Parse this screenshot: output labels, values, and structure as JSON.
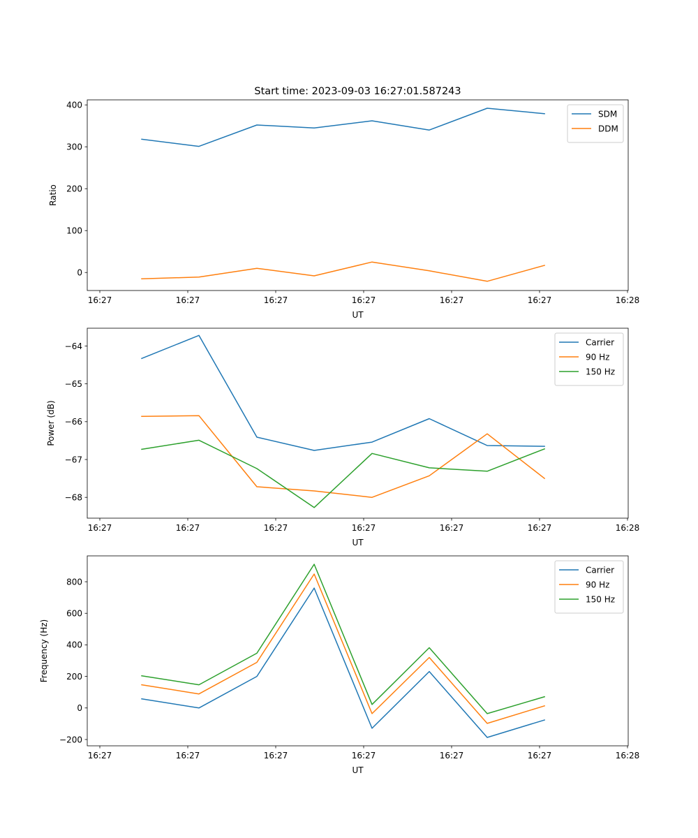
{
  "figure": {
    "title": "Start time: 2023-09-03 16:27:01.587243"
  },
  "chart_data": [
    {
      "type": "line",
      "title": "Start time: 2023-09-03 16:27:01.587243",
      "xlabel": "UT",
      "ylabel": "Ratio",
      "x_unit": "seconds after 16:27:00 UT",
      "x": [
        4.76,
        11.27,
        17.86,
        24.37,
        30.95,
        37.46,
        44.05,
        50.56
      ],
      "xlim": [
        -1.43,
        60.08
      ],
      "xticks": [
        0,
        10,
        20,
        30,
        40,
        50,
        60
      ],
      "xtick_labels": [
        "16:27",
        "16:27",
        "16:27",
        "16:27",
        "16:27",
        "16:27",
        "16:28"
      ],
      "ylim": [
        -43,
        412
      ],
      "yticks": [
        0,
        100,
        200,
        300,
        400
      ],
      "ytick_labels": [
        "0",
        "100",
        "200",
        "300",
        "400"
      ],
      "grid": false,
      "legend_position": "top-right",
      "series": [
        {
          "name": "SDM",
          "color": "#1f77b4",
          "values": [
            318,
            301,
            352,
            345,
            362,
            340,
            392,
            379
          ]
        },
        {
          "name": "DDM",
          "color": "#ff7f0e",
          "values": [
            -15,
            -11,
            10,
            -8,
            25,
            4,
            -21,
            17
          ]
        }
      ]
    },
    {
      "type": "line",
      "title": "",
      "xlabel": "UT",
      "ylabel": "Power (dB)",
      "x_unit": "seconds after 16:27:00 UT",
      "x": [
        4.76,
        11.27,
        17.86,
        24.37,
        30.95,
        37.46,
        44.05,
        50.56
      ],
      "xlim": [
        -1.43,
        60.08
      ],
      "xticks": [
        0,
        10,
        20,
        30,
        40,
        50,
        60
      ],
      "xtick_labels": [
        "16:27",
        "16:27",
        "16:27",
        "16:27",
        "16:27",
        "16:27",
        "16:28"
      ],
      "ylim": [
        -68.55,
        -63.53
      ],
      "yticks": [
        -68,
        -67,
        -66,
        -65,
        -64
      ],
      "ytick_labels": [
        "−68",
        "−67",
        "−66",
        "−65",
        "−64"
      ],
      "grid": false,
      "legend_position": "top-right",
      "series": [
        {
          "name": "Carrier",
          "color": "#1f77b4",
          "values": [
            -64.33,
            -63.72,
            -66.41,
            -66.76,
            -66.54,
            -65.92,
            -66.63,
            -66.65
          ]
        },
        {
          "name": "90 Hz",
          "color": "#ff7f0e",
          "values": [
            -65.86,
            -65.84,
            -67.72,
            -67.83,
            -68.0,
            -67.43,
            -66.32,
            -67.5
          ]
        },
        {
          "name": "150 Hz",
          "color": "#2ca02c",
          "values": [
            -66.73,
            -66.49,
            -67.24,
            -68.27,
            -66.84,
            -67.22,
            -67.31,
            -66.72
          ]
        }
      ]
    },
    {
      "type": "line",
      "title": "",
      "xlabel": "UT",
      "ylabel": "Frequency (Hz)",
      "x_unit": "seconds after 16:27:00 UT",
      "x": [
        4.76,
        11.27,
        17.86,
        24.37,
        30.95,
        37.46,
        44.05,
        50.56
      ],
      "xlim": [
        -1.43,
        60.08
      ],
      "xticks": [
        0,
        10,
        20,
        30,
        40,
        50,
        60
      ],
      "xtick_labels": [
        "16:27",
        "16:27",
        "16:27",
        "16:27",
        "16:27",
        "16:27",
        "16:28"
      ],
      "ylim": [
        -240,
        964
      ],
      "yticks": [
        -200,
        0,
        200,
        400,
        600,
        800
      ],
      "ytick_labels": [
        "−200",
        "0",
        "200",
        "400",
        "600",
        "800"
      ],
      "grid": false,
      "legend_position": "top-right",
      "series": [
        {
          "name": "Carrier",
          "color": "#1f77b4",
          "values": [
            58,
            0,
            200,
            760,
            -129,
            231,
            -187,
            -76
          ]
        },
        {
          "name": "90 Hz",
          "color": "#ff7f0e",
          "values": [
            147,
            89,
            289,
            849,
            -36,
            320,
            -98,
            13
          ]
        },
        {
          "name": "150 Hz",
          "color": "#2ca02c",
          "values": [
            204,
            147,
            347,
            911,
            22,
            382,
            -36,
            71
          ]
        }
      ]
    }
  ]
}
